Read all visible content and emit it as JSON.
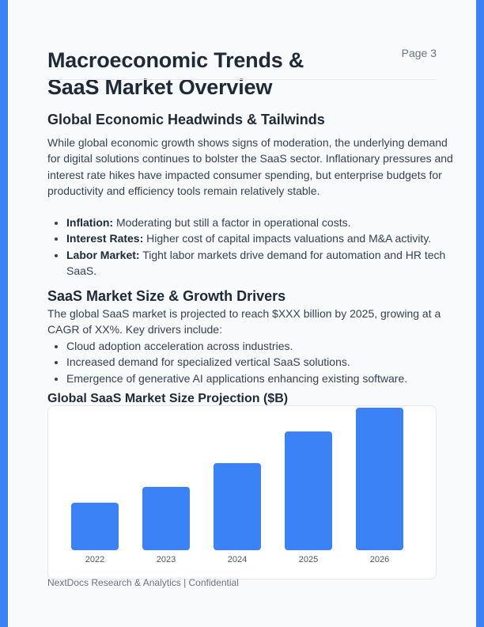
{
  "page": {
    "title": "Macroeconomic Trends & SaaS Market Overview",
    "page_label": "Page 3"
  },
  "section1": {
    "heading": "Global Economic Headwinds & Tailwinds",
    "paragraph": "While global economic growth shows signs of moderation, the underlying demand for digital solutions continues to bolster the SaaS sector. Inflationary pressures and interest rate hikes have impacted consumer spending, but enterprise budgets for productivity and efficiency tools remain relatively stable.",
    "bullets": [
      {
        "term": "Inflation:",
        "text": " Moderating but still a factor in operational costs."
      },
      {
        "term": "Interest Rates:",
        "text": " Higher cost of capital impacts valuations and M&A activity."
      },
      {
        "term": "Labor Market:",
        "text": " Tight labor markets drive demand for automation and HR tech SaaS."
      }
    ]
  },
  "section2": {
    "heading": "SaaS Market Size & Growth Drivers",
    "paragraph": "The global SaaS market is projected to reach $XXX billion by 2025, growing at a CAGR of XX%. Key drivers include:",
    "bullets": [
      "Cloud adoption acceleration across industries.",
      "Increased demand for specialized vertical SaaS solutions.",
      "Emergence of generative AI applications enhancing existing software."
    ]
  },
  "chart_data": {
    "type": "bar",
    "title": "Global SaaS Market Size Projection ($B)",
    "categories": [
      "2022",
      "2023",
      "2024",
      "2025",
      "2026"
    ],
    "values": [
      60,
      80,
      110,
      150,
      180
    ],
    "value_note": "relative bar heights (no y-axis shown)",
    "xlabel": "",
    "ylabel": "",
    "grid": false,
    "legend": "none",
    "color": "#3b82f6"
  },
  "footer": {
    "text": "NextDocs Research & Analytics | Confidential"
  },
  "colors": {
    "accent": "#3b82f6",
    "background": "#f8fafc",
    "heading": "#1f2937",
    "body": "#374151",
    "muted": "#6b7280"
  }
}
